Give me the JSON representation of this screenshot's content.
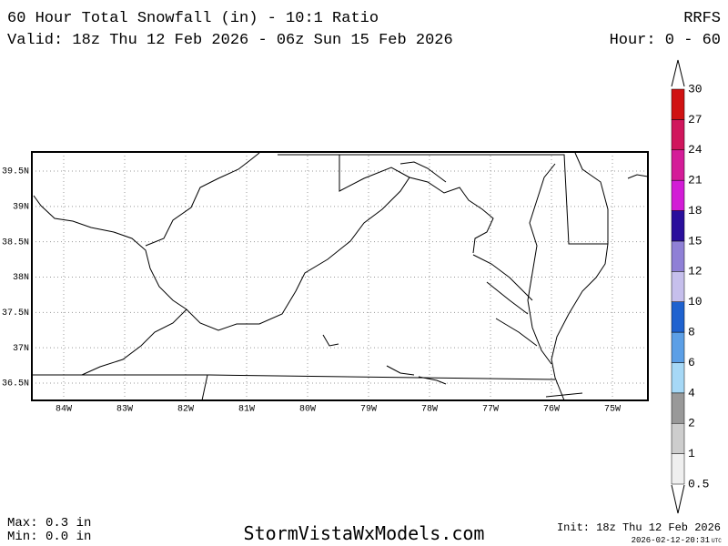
{
  "header": {
    "title": "60 Hour Total Snowfall (in) - 10:1 Ratio",
    "model": "RRFS",
    "valid": "Valid: 18z Thu 12 Feb 2026 - 06z Sun 15 Feb 2026",
    "hours": "Hour: 0 - 60"
  },
  "map": {
    "lat_ticks": [
      {
        "value": 39.5,
        "label": "39.5N"
      },
      {
        "value": 39,
        "label": "39N"
      },
      {
        "value": 38.5,
        "label": "38.5N"
      },
      {
        "value": 38,
        "label": "38N"
      },
      {
        "value": 37.5,
        "label": "37.5N"
      },
      {
        "value": 37,
        "label": "37N"
      },
      {
        "value": 36.5,
        "label": "36.5N"
      }
    ],
    "lon_ticks": [
      {
        "value": -84,
        "label": "84W"
      },
      {
        "value": -83,
        "label": "83W"
      },
      {
        "value": -82,
        "label": "82W"
      },
      {
        "value": -81,
        "label": "81W"
      },
      {
        "value": -80,
        "label": "80W"
      },
      {
        "value": -79,
        "label": "79W"
      },
      {
        "value": -78,
        "label": "78W"
      },
      {
        "value": -77,
        "label": "77W"
      },
      {
        "value": -76,
        "label": "76W"
      },
      {
        "value": -75,
        "label": "75W"
      }
    ]
  },
  "colorbar": {
    "levels": [
      0.5,
      1,
      2,
      4,
      6,
      8,
      10,
      12,
      15,
      18,
      21,
      24,
      27,
      30
    ],
    "colors": [
      "#efefef",
      "#cdcdcd",
      "#999999",
      "#a6d8f6",
      "#5c9fe6",
      "#1f62cf",
      "#c6bfec",
      "#8f80d6",
      "#2a0f9c",
      "#d21cd6",
      "#d41c98",
      "#d0165c",
      "#d01212"
    ]
  },
  "footer": {
    "max": "Max: 0.3 in",
    "min": "Min: 0.0 in",
    "site": "StormVistaWxModels.com",
    "init": "Init: 18z Thu 12 Feb 2026",
    "timestamp": "2026-02-12-20:31",
    "timezone": "UTC"
  }
}
